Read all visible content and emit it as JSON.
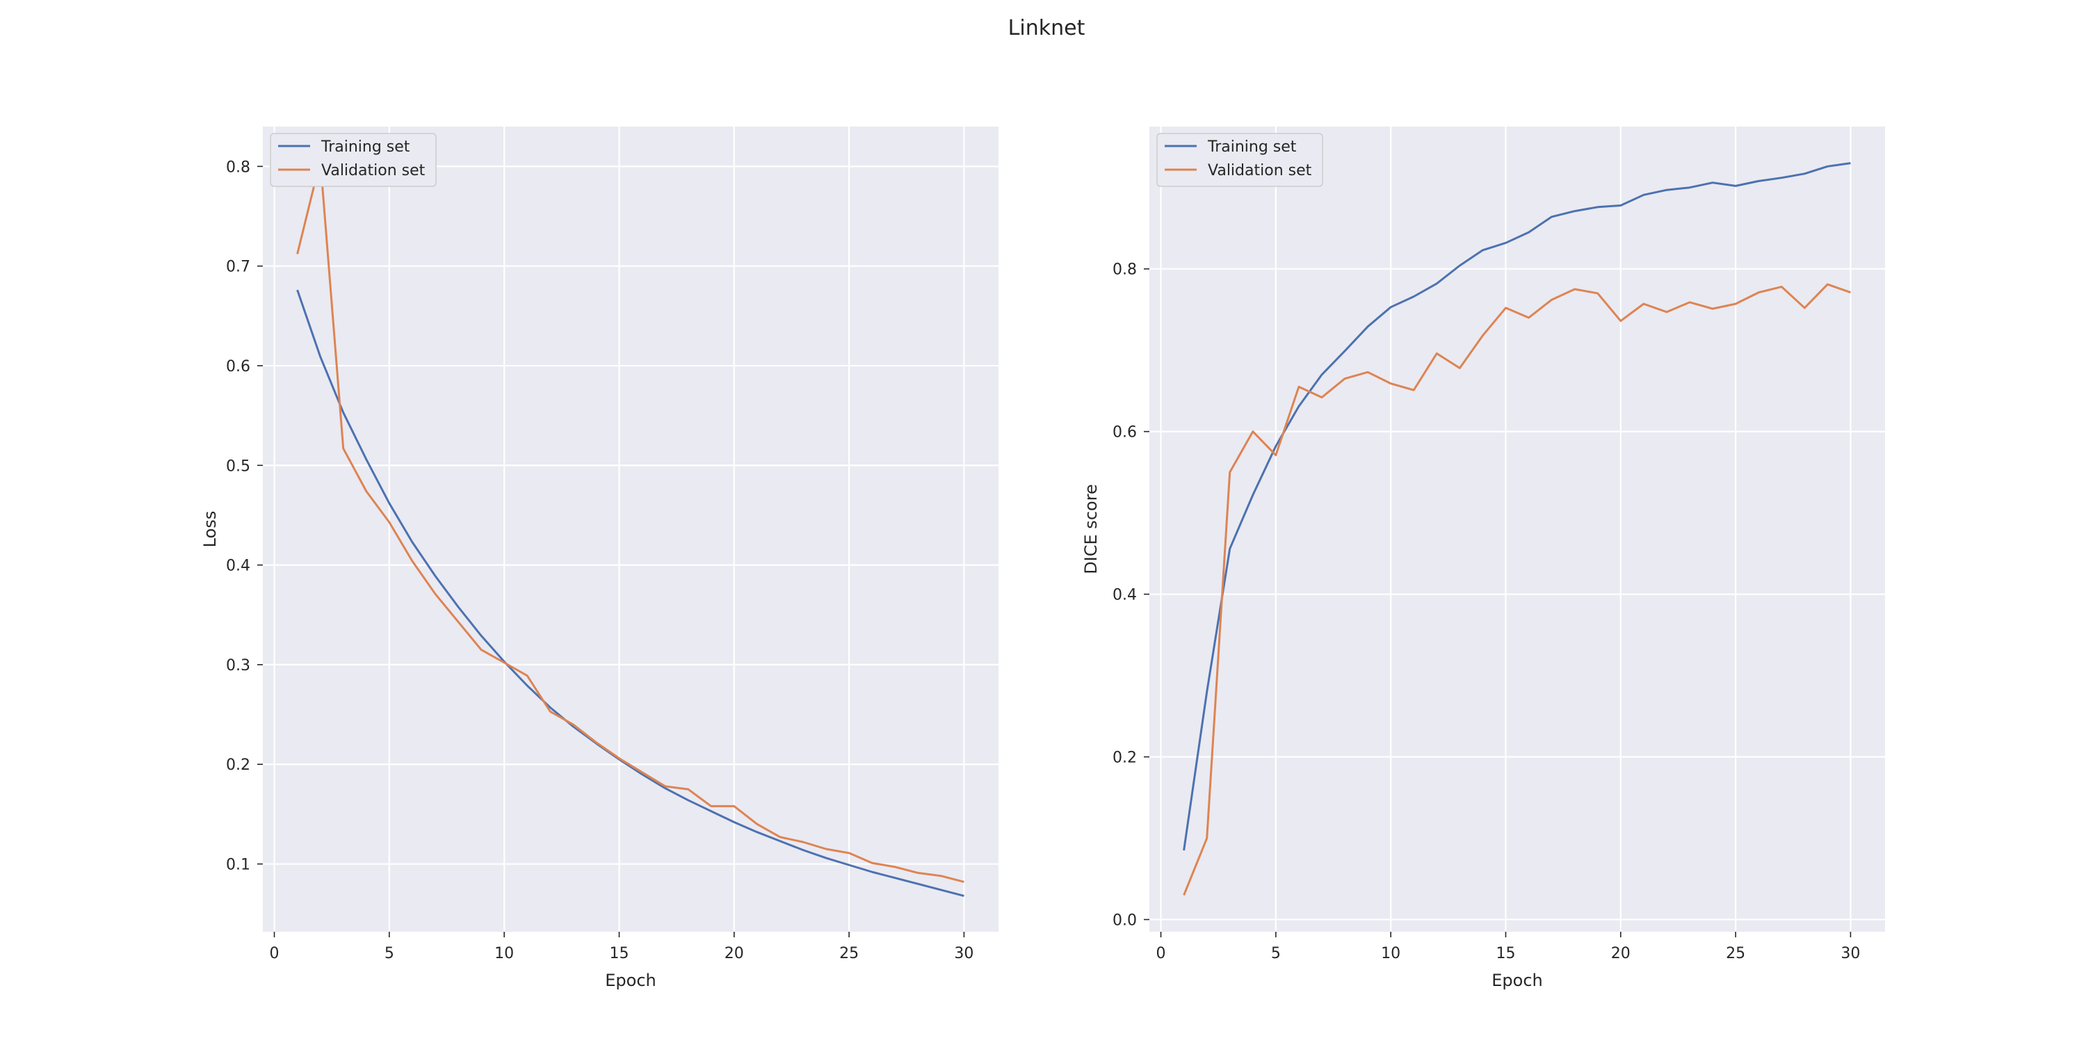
{
  "figure": {
    "title": "Linknet"
  },
  "chart_data": [
    {
      "type": "line",
      "title": "",
      "xlabel": "Epoch",
      "ylabel": "Loss",
      "xlim": [
        -0.5,
        31.5
      ],
      "ylim": [
        0.032,
        0.84
      ],
      "xticks": [
        0,
        5,
        10,
        15,
        20,
        25,
        30
      ],
      "yticks": [
        0.1,
        0.2,
        0.3,
        0.4,
        0.5,
        0.6,
        0.7,
        0.8
      ],
      "grid": true,
      "legend": "top-left",
      "x": [
        1,
        2,
        3,
        4,
        5,
        6,
        7,
        8,
        9,
        10,
        11,
        12,
        13,
        14,
        15,
        16,
        17,
        18,
        19,
        20,
        21,
        22,
        23,
        24,
        25,
        26,
        27,
        28,
        29,
        30
      ],
      "series": [
        {
          "name": "Training set",
          "color": "#4c72b0",
          "values": [
            0.676,
            0.609,
            0.553,
            0.506,
            0.462,
            0.423,
            0.389,
            0.358,
            0.329,
            0.303,
            0.279,
            0.257,
            0.238,
            0.221,
            0.205,
            0.19,
            0.176,
            0.164,
            0.153,
            0.142,
            0.132,
            0.123,
            0.114,
            0.106,
            0.099,
            0.092,
            0.086,
            0.08,
            0.074,
            0.068
          ]
        },
        {
          "name": "Validation set",
          "color": "#dd8452",
          "values": [
            0.712,
            0.806,
            0.517,
            0.474,
            0.443,
            0.404,
            0.371,
            0.343,
            0.315,
            0.302,
            0.289,
            0.253,
            0.24,
            0.222,
            0.206,
            0.192,
            0.178,
            0.175,
            0.158,
            0.158,
            0.14,
            0.127,
            0.122,
            0.115,
            0.111,
            0.101,
            0.097,
            0.091,
            0.088,
            0.082
          ]
        }
      ]
    },
    {
      "type": "line",
      "title": "",
      "xlabel": "Epoch",
      "ylabel": "DICE score",
      "xlim": [
        -0.5,
        31.5
      ],
      "ylim": [
        -0.015,
        0.975
      ],
      "xticks": [
        0,
        5,
        10,
        15,
        20,
        25,
        30
      ],
      "yticks": [
        0.0,
        0.2,
        0.4,
        0.6,
        0.8
      ],
      "grid": true,
      "legend": "top-left",
      "x": [
        1,
        2,
        3,
        4,
        5,
        6,
        7,
        8,
        9,
        10,
        11,
        12,
        13,
        14,
        15,
        16,
        17,
        18,
        19,
        20,
        21,
        22,
        23,
        24,
        25,
        26,
        27,
        28,
        29,
        30
      ],
      "series": [
        {
          "name": "Training set",
          "color": "#4c72b0",
          "values": [
            0.085,
            0.28,
            0.456,
            0.522,
            0.582,
            0.631,
            0.67,
            0.699,
            0.729,
            0.753,
            0.766,
            0.782,
            0.804,
            0.823,
            0.832,
            0.845,
            0.864,
            0.871,
            0.876,
            0.878,
            0.891,
            0.897,
            0.9,
            0.906,
            0.902,
            0.908,
            0.912,
            0.917,
            0.926,
            0.93
          ]
        },
        {
          "name": "Validation set",
          "color": "#dd8452",
          "values": [
            0.03,
            0.1,
            0.55,
            0.6,
            0.571,
            0.655,
            0.642,
            0.665,
            0.673,
            0.659,
            0.651,
            0.696,
            0.678,
            0.718,
            0.752,
            0.74,
            0.762,
            0.775,
            0.77,
            0.736,
            0.757,
            0.747,
            0.759,
            0.751,
            0.757,
            0.771,
            0.778,
            0.752,
            0.781,
            0.771
          ]
        }
      ]
    }
  ]
}
